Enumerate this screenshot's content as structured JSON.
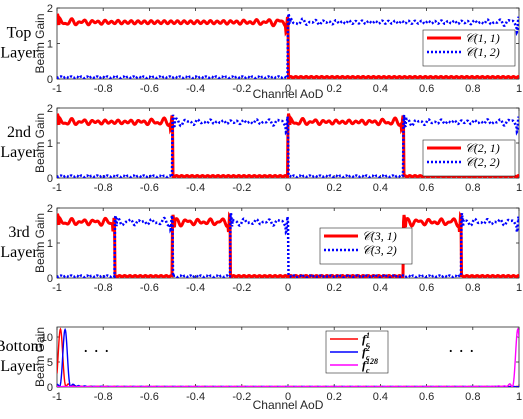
{
  "chart_data": [
    {
      "type": "line",
      "layer_label": [
        "Top",
        "Layer"
      ],
      "xlabel": "Channel AoD",
      "ylabel": "Beam Gain",
      "xlim": [
        -1,
        1
      ],
      "ylim": [
        0,
        2
      ],
      "xticks": [
        -1,
        -0.8,
        -0.6,
        -0.4,
        -0.2,
        0,
        0.2,
        0.4,
        0.6,
        0.8,
        1
      ],
      "yticks": [
        0,
        1,
        2
      ],
      "show_xlabel": true,
      "legend_position": "right",
      "series": [
        {
          "name": "𝒞(1, 1)",
          "color": "#ff0000",
          "style": "solid",
          "width": 3,
          "segments": [
            [
              -1,
              0
            ]
          ]
        },
        {
          "name": "𝒞(1, 2)",
          "color": "#0000ff",
          "style": "dotted",
          "width": 2.5,
          "segments": [
            [
              0,
              1
            ]
          ]
        }
      ]
    },
    {
      "type": "line",
      "layer_label": [
        "2nd",
        "Layer"
      ],
      "xlabel": "Channel AoD",
      "ylabel": "Beam Gain",
      "xlim": [
        -1,
        1
      ],
      "ylim": [
        0,
        2
      ],
      "xticks": [
        -1,
        -0.8,
        -0.6,
        -0.4,
        -0.2,
        0,
        0.2,
        0.4,
        0.6,
        0.8,
        1
      ],
      "yticks": [
        0,
        1,
        2
      ],
      "show_xlabel": false,
      "legend_position": "right",
      "series": [
        {
          "name": "𝒞(2, 1)",
          "color": "#ff0000",
          "style": "solid",
          "width": 3,
          "segments": [
            [
              -1,
              -0.5
            ],
            [
              0,
              0.5
            ]
          ]
        },
        {
          "name": "𝒞(2, 2)",
          "color": "#0000ff",
          "style": "dotted",
          "width": 2.5,
          "segments": [
            [
              -0.5,
              0
            ],
            [
              0.5,
              1
            ]
          ]
        }
      ]
    },
    {
      "type": "line",
      "layer_label": [
        "3rd",
        "Layer"
      ],
      "xlabel": "Channel AoD",
      "ylabel": "Beam Gain",
      "xlim": [
        -1,
        1
      ],
      "ylim": [
        0,
        2
      ],
      "xticks": [
        -1,
        -0.8,
        -0.6,
        -0.4,
        -0.2,
        0,
        0.2,
        0.4,
        0.6,
        0.8,
        1
      ],
      "yticks": [
        0,
        1,
        2
      ],
      "show_xlabel": false,
      "legend_position": "upper center",
      "series": [
        {
          "name": "𝒞(3, 1)",
          "color": "#ff0000",
          "style": "solid",
          "width": 3,
          "segments": [
            [
              -1,
              -0.75
            ],
            [
              -0.5,
              -0.25
            ],
            [
              0.5,
              0.75
            ]
          ]
        },
        {
          "name": "𝒞(3, 2)",
          "color": "#0000ff",
          "style": "dotted",
          "width": 2.5,
          "segments": [
            [
              -0.75,
              -0.5
            ],
            [
              -0.25,
              0
            ],
            [
              0.75,
              1
            ]
          ]
        }
      ]
    },
    {
      "type": "line",
      "layer_label": [
        "Bottom",
        "Layer"
      ],
      "xlabel": "Channel AoD",
      "ylabel": "Beam Gain",
      "xlim": [
        -1,
        1
      ],
      "ylim": [
        0,
        12
      ],
      "xticks": [
        -1,
        -0.8,
        -0.6,
        -0.4,
        -0.2,
        0,
        0.2,
        0.4,
        0.6,
        0.8,
        1
      ],
      "yticks": [
        0,
        5,
        10
      ],
      "show_xlabel": true,
      "legend_position": "upper right",
      "ellipsis": "· · ·",
      "series": [
        {
          "name": "f",
          "sup": "1",
          "sub": "c",
          "color": "#ff0000",
          "peak": -0.985,
          "height": 11.5
        },
        {
          "name": "f",
          "sup": "2",
          "sub": "c",
          "color": "#0000ff",
          "peak": -0.965,
          "height": 11.5
        },
        {
          "name": "f",
          "sup": "128",
          "sub": "c",
          "color": "#ff00ff",
          "peak": 0.995,
          "height": 11.5
        }
      ]
    }
  ]
}
